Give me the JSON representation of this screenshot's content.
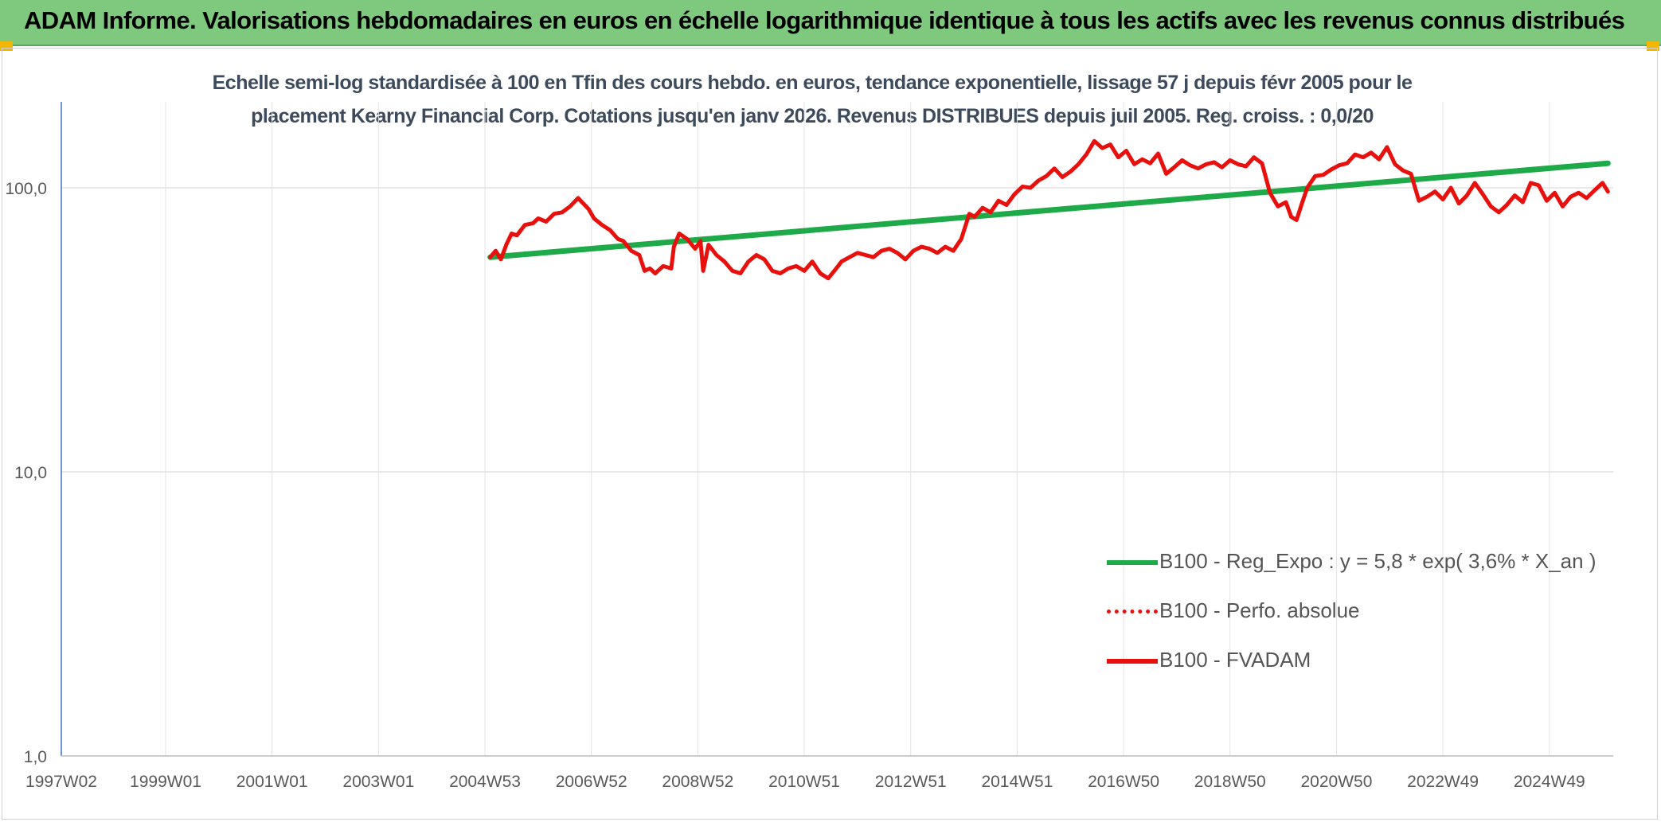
{
  "header": {
    "title": "ADAM Informe. Valorisations hebdomadaires en euros en échelle logarithmique identique à tous les actifs avec les revenus connus distribués"
  },
  "chart_data": {
    "type": "line",
    "title_line1": "Echelle semi-log standardisée à 100 en Tfin des cours hebdo. en euros, tendance exponentielle, lissage 57 j depuis févr 2005 pour le",
    "title_line2": "placement Kearny Financial Corp. Cotations jusqu'en janv 2026. Revenus DISTRIBUES depuis juil 2005. Reg. croiss. : 0,0/20",
    "y_scale": "log",
    "ylim": [
      1,
      200
    ],
    "y_ticks": [
      {
        "value": 1,
        "label": "1,0"
      },
      {
        "value": 10,
        "label": "10,0"
      },
      {
        "value": 100,
        "label": "100,0"
      }
    ],
    "xlim": [
      1997.04,
      2026.2
    ],
    "x_ticks": [
      {
        "value": 1997.04,
        "label": "1997W02"
      },
      {
        "value": 1999.0,
        "label": "1999W01"
      },
      {
        "value": 2001.0,
        "label": "2001W01"
      },
      {
        "value": 2003.0,
        "label": "2003W01"
      },
      {
        "value": 2005.0,
        "label": "2004W53"
      },
      {
        "value": 2007.0,
        "label": "2006W52"
      },
      {
        "value": 2009.0,
        "label": "2008W52"
      },
      {
        "value": 2011.0,
        "label": "2010W51"
      },
      {
        "value": 2013.0,
        "label": "2012W51"
      },
      {
        "value": 2015.0,
        "label": "2014W51"
      },
      {
        "value": 2017.0,
        "label": "2016W50"
      },
      {
        "value": 2019.0,
        "label": "2018W50"
      },
      {
        "value": 2021.0,
        "label": "2020W50"
      },
      {
        "value": 2023.0,
        "label": "2022W49"
      },
      {
        "value": 2025.0,
        "label": "2024W49"
      }
    ],
    "legend_position": "right",
    "series": [
      {
        "name": "B100 - Reg_Expo : y = 5,8 * exp( 3,6% *  X_an )",
        "color": "#1faa4a",
        "style": "solid",
        "x": [
          2005.1,
          2026.1
        ],
        "values": [
          57,
          122
        ]
      },
      {
        "name": "B100 - Perfo. absolue",
        "color": "#e8100c",
        "style": "dotted",
        "x": [],
        "values": []
      },
      {
        "name": "B100 - FVADAM",
        "color": "#e8100c",
        "style": "solid",
        "x": [
          2005.1,
          2005.2,
          2005.3,
          2005.4,
          2005.5,
          2005.6,
          2005.75,
          2005.9,
          2006.0,
          2006.15,
          2006.3,
          2006.45,
          2006.6,
          2006.75,
          2006.9,
          2006.95,
          2007.05,
          2007.2,
          2007.35,
          2007.5,
          2007.6,
          2007.75,
          2007.9,
          2008.0,
          2008.1,
          2008.2,
          2008.35,
          2008.5,
          2008.55,
          2008.65,
          2008.8,
          2008.95,
          2009.05,
          2009.1,
          2009.2,
          2009.35,
          2009.5,
          2009.65,
          2009.8,
          2009.95,
          2010.1,
          2010.25,
          2010.4,
          2010.55,
          2010.7,
          2010.85,
          2011.0,
          2011.15,
          2011.3,
          2011.45,
          2011.6,
          2011.7,
          2011.85,
          2012.0,
          2012.15,
          2012.3,
          2012.45,
          2012.6,
          2012.75,
          2012.9,
          2013.05,
          2013.2,
          2013.35,
          2013.5,
          2013.65,
          2013.8,
          2013.95,
          2014.1,
          2014.2,
          2014.35,
          2014.5,
          2014.65,
          2014.8,
          2014.95,
          2015.1,
          2015.25,
          2015.4,
          2015.55,
          2015.7,
          2015.85,
          2016.0,
          2016.15,
          2016.3,
          2016.45,
          2016.6,
          2016.75,
          2016.9,
          2017.05,
          2017.2,
          2017.35,
          2017.5,
          2017.65,
          2017.8,
          2017.95,
          2018.1,
          2018.25,
          2018.4,
          2018.55,
          2018.7,
          2018.85,
          2019.0,
          2019.15,
          2019.3,
          2019.45,
          2019.6,
          2019.75,
          2019.9,
          2020.05,
          2020.15,
          2020.25,
          2020.35,
          2020.45,
          2020.6,
          2020.75,
          2020.9,
          2021.05,
          2021.2,
          2021.35,
          2021.5,
          2021.65,
          2021.8,
          2021.95,
          2022.1,
          2022.25,
          2022.4,
          2022.55,
          2022.7,
          2022.85,
          2023.0,
          2023.15,
          2023.3,
          2023.45,
          2023.6,
          2023.75,
          2023.9,
          2024.05,
          2024.2,
          2024.35,
          2024.5,
          2024.65,
          2024.8,
          2024.95,
          2025.1,
          2025.25,
          2025.4,
          2025.55,
          2025.7,
          2025.85,
          2026.0,
          2026.1
        ],
        "values": [
          57,
          60,
          56,
          63,
          69,
          68,
          74,
          75,
          78,
          76,
          81,
          82,
          86,
          92,
          86,
          84,
          78,
          74,
          71,
          66,
          65,
          60,
          58,
          51,
          52,
          50,
          53,
          52,
          62,
          69,
          66,
          61,
          65,
          51,
          63,
          58,
          55,
          51,
          50,
          55,
          58,
          56,
          51,
          50,
          52,
          53,
          51,
          55,
          50,
          48,
          52,
          55,
          57,
          59,
          58,
          57,
          60,
          61,
          59,
          56,
          60,
          62,
          61,
          59,
          62,
          60,
          66,
          81,
          79,
          85,
          82,
          90,
          87,
          95,
          101,
          100,
          106,
          110,
          117,
          109,
          114,
          121,
          131,
          146,
          138,
          142,
          128,
          135,
          121,
          126,
          122,
          132,
          112,
          118,
          125,
          120,
          117,
          121,
          123,
          118,
          125,
          121,
          119,
          128,
          122,
          96,
          86,
          89,
          79,
          77,
          88,
          100,
          110,
          111,
          116,
          120,
          122,
          131,
          128,
          133,
          126,
          139,
          121,
          115,
          112,
          90,
          93,
          97,
          91,
          100,
          88,
          94,
          104,
          95,
          86,
          82,
          87,
          94,
          89,
          104,
          102,
          90,
          96,
          86,
          93,
          96,
          92,
          98,
          104,
          97
        ]
      }
    ]
  }
}
